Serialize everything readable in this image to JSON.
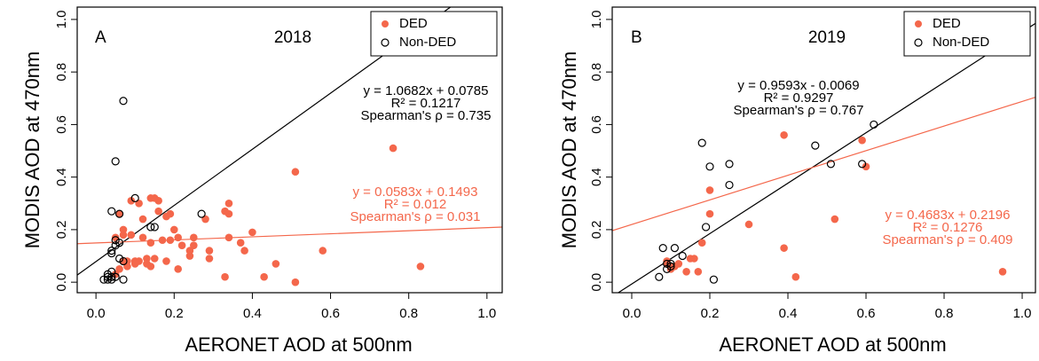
{
  "chart_data": [
    {
      "type": "scatter",
      "panel_label": "A",
      "title": "2018",
      "x_label": "AERONET AOD at 500nm",
      "y_label": "MODIS AOD at 470nm",
      "xlim": [
        -0.048,
        1.039
      ],
      "ylim": [
        -0.04,
        1.047
      ],
      "xticks": [
        {
          "value": 0,
          "label": "0.0"
        },
        0.2,
        0.4,
        0.6,
        0.8,
        {
          "value": 1,
          "label": "1.0"
        }
      ],
      "yticks": [
        {
          "value": 0,
          "label": "0.0"
        },
        0.2,
        0.4,
        0.6,
        0.8,
        {
          "value": 1,
          "label": "1.0"
        }
      ],
      "legend": "top-right",
      "series": [
        {
          "name": "DED",
          "color": "#f4674b",
          "filled": true,
          "x": [
            0.76,
            0.51,
            0.83,
            0.51,
            0.58,
            0.46,
            0.43,
            0.4,
            0.37,
            0.38,
            0.34,
            0.34,
            0.33,
            0.34,
            0.33,
            0.29,
            0.29,
            0.28,
            0.25,
            0.25,
            0.24,
            0.24,
            0.22,
            0.21,
            0.2,
            0.19,
            0.19,
            0.18,
            0.18,
            0.17,
            0.16,
            0.16,
            0.15,
            0.14,
            0.14,
            0.14,
            0.13,
            0.13,
            0.12,
            0.12,
            0.11,
            0.11,
            0.1,
            0.1,
            0.09,
            0.09,
            0.08,
            0.08,
            0.07,
            0.07,
            0.07,
            0.06,
            0.06,
            0.05,
            0.05,
            0.21,
            0.15
          ],
          "values": [
            0.51,
            0.42,
            0.06,
            0.0,
            0.12,
            0.07,
            0.02,
            0.19,
            0.15,
            0.12,
            0.3,
            0.26,
            0.27,
            0.17,
            0.02,
            0.12,
            0.09,
            0.24,
            0.17,
            0.14,
            0.1,
            0.12,
            0.14,
            0.17,
            0.2,
            0.26,
            0.16,
            0.25,
            0.08,
            0.16,
            0.27,
            0.31,
            0.32,
            0.32,
            0.15,
            0.06,
            0.09,
            0.07,
            0.24,
            0.17,
            0.3,
            0.08,
            0.08,
            0.07,
            0.31,
            0.18,
            0.08,
            0.06,
            0.2,
            0.18,
            0.08,
            0.26,
            0.05,
            0.03,
            0.17,
            0.05,
            0.09
          ]
        },
        {
          "name": "Non-DED",
          "color": "#000000",
          "filled": false,
          "x": [
            0.07,
            0.05,
            0.1,
            0.27,
            0.06,
            0.04,
            0.05,
            0.06,
            0.05,
            0.04,
            0.04,
            0.15,
            0.14,
            0.06,
            0.07,
            0.04,
            0.03,
            0.04,
            0.03,
            0.02,
            0.03,
            0.04,
            0.05,
            0.07
          ],
          "values": [
            0.69,
            0.46,
            0.32,
            0.26,
            0.26,
            0.27,
            0.16,
            0.15,
            0.14,
            0.12,
            0.11,
            0.21,
            0.21,
            0.09,
            0.08,
            0.04,
            0.03,
            0.02,
            0.02,
            0.01,
            0.01,
            0.01,
            0.02,
            0.01
          ]
        }
      ],
      "fits": [
        {
          "color": "#000000",
          "slope": 1.0682,
          "intercept": 0.0785,
          "labels": [
            "y = 1.0682x + 0.0785",
            "R² = 0.1217",
            "Spearman's ρ = 0.735"
          ]
        },
        {
          "color": "#f4674b",
          "slope": 0.0583,
          "intercept": 0.1493,
          "labels": [
            "y = 0.0583x + 0.1493",
            "R² = 0.012",
            "Spearman's ρ = 0.031"
          ]
        }
      ]
    },
    {
      "type": "scatter",
      "panel_label": "B",
      "title": "2019",
      "x_label": "AERONET AOD at 500nm",
      "y_label": "MODIS AOD at 470nm",
      "xlim": [
        -0.05,
        1.034
      ],
      "ylim": [
        -0.04,
        1.047
      ],
      "xticks": [
        {
          "value": 0,
          "label": "0.0"
        },
        0.2,
        0.4,
        0.6,
        0.8,
        {
          "value": 1,
          "label": "1.0"
        }
      ],
      "yticks": [
        {
          "value": 0,
          "label": "0.0"
        },
        0.2,
        0.4,
        0.6,
        0.8,
        {
          "value": 1,
          "label": "1.0"
        }
      ],
      "legend": "top-right",
      "series": [
        {
          "name": "DED",
          "color": "#f4674b",
          "filled": true,
          "x": [
            0.39,
            0.59,
            0.6,
            0.2,
            0.2,
            0.3,
            0.18,
            0.52,
            0.39,
            0.42,
            0.95,
            0.15,
            0.16,
            0.14,
            0.17,
            0.11,
            0.1,
            0.09,
            0.12,
            0.1,
            0.09
          ],
          "values": [
            0.56,
            0.54,
            0.44,
            0.35,
            0.26,
            0.22,
            0.15,
            0.24,
            0.13,
            0.02,
            0.04,
            0.09,
            0.09,
            0.04,
            0.04,
            0.06,
            0.06,
            0.07,
            0.07,
            0.05,
            0.08
          ]
        },
        {
          "name": "Non-DED",
          "color": "#000000",
          "filled": false,
          "x": [
            0.62,
            0.47,
            0.18,
            0.2,
            0.25,
            0.25,
            0.51,
            0.59,
            0.19,
            0.11,
            0.08,
            0.13,
            0.09,
            0.09,
            0.1,
            0.07,
            0.21,
            0.1
          ],
          "values": [
            0.6,
            0.52,
            0.53,
            0.44,
            0.45,
            0.37,
            0.45,
            0.45,
            0.21,
            0.13,
            0.13,
            0.1,
            0.07,
            0.05,
            0.06,
            0.02,
            0.01,
            0.07
          ]
        }
      ],
      "fits": [
        {
          "color": "#000000",
          "slope": 0.9593,
          "intercept": -0.0069,
          "labels": [
            "y = 0.9593x - 0.0069",
            "R² = 0.9297",
            "Spearman's ρ = 0.767"
          ]
        },
        {
          "color": "#f4674b",
          "slope": 0.4683,
          "intercept": 0.2196,
          "labels": [
            "y = 0.4683x + 0.2196",
            "R² = 0.1276",
            "Spearman's ρ = 0.409"
          ]
        }
      ]
    }
  ]
}
